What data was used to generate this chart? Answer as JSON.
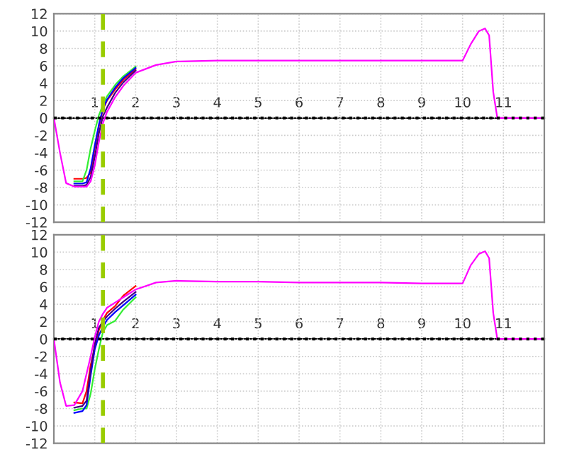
{
  "chart_data": [
    {
      "type": "line",
      "xlim": [
        0,
        12
      ],
      "ylim": [
        -12,
        12
      ],
      "xticks": [
        1,
        2,
        3,
        4,
        5,
        6,
        7,
        8,
        9,
        10,
        11
      ],
      "yticks": [
        -12,
        -10,
        -8,
        -6,
        -4,
        -2,
        0,
        2,
        4,
        6,
        8,
        10,
        12
      ],
      "grid": true,
      "line_style": "solid",
      "ref_lines": [
        {
          "axis": "y",
          "value": 0,
          "color": "#000000",
          "line_style": "dotted"
        },
        {
          "axis": "x",
          "value": 1.2,
          "color": "#99cc00",
          "line_style": "dashed"
        }
      ],
      "x": [
        0,
        0.15,
        0.3,
        0.5,
        0.7,
        0.8,
        0.9,
        1.0,
        1.1,
        1.2,
        1.3,
        1.5,
        1.7,
        2.0,
        2.5,
        3,
        4,
        5,
        6,
        7,
        8,
        9,
        10,
        10.2,
        10.4,
        10.55,
        10.65,
        10.75,
        10.85,
        11,
        11.5,
        11.9
      ],
      "series": [
        {
          "color": "#ff0000",
          "values": [
            null,
            null,
            null,
            -7.0,
            -7.0,
            -6.9,
            -6.3,
            -3.5,
            -1,
            1,
            2,
            3.3,
            4.4,
            5.6,
            null,
            null,
            null,
            null,
            null,
            null,
            null,
            null,
            null,
            null,
            null,
            null,
            null,
            null,
            null,
            null,
            null,
            null
          ]
        },
        {
          "color": "#33ee33",
          "values": [
            null,
            null,
            null,
            -7.3,
            -7.3,
            -6,
            -3.5,
            -1.5,
            0.3,
            1.5,
            2.5,
            3.8,
            4.8,
            5.9,
            null,
            null,
            null,
            null,
            null,
            null,
            null,
            null,
            null,
            null,
            null,
            null,
            null,
            null,
            null,
            null,
            null,
            null
          ]
        },
        {
          "color": "#0000ff",
          "values": [
            null,
            null,
            null,
            -7.55,
            -7.55,
            -7.4,
            -5.8,
            -3.2,
            -0.8,
            1.1,
            2.1,
            3.5,
            4.6,
            5.75,
            null,
            null,
            null,
            null,
            null,
            null,
            null,
            null,
            null,
            null,
            null,
            null,
            null,
            null,
            null,
            null,
            null,
            null
          ]
        },
        {
          "color": "#400080",
          "values": [
            null,
            null,
            null,
            -7.8,
            -7.8,
            -7.7,
            -6.8,
            -4.5,
            -1.8,
            0.2,
            1.2,
            2.9,
            4.1,
            5.45,
            null,
            null,
            null,
            null,
            null,
            null,
            null,
            null,
            null,
            null,
            null,
            null,
            null,
            null,
            null,
            null,
            null,
            null
          ]
        },
        {
          "color": "#ff00ff",
          "values": [
            0,
            -4,
            -7.5,
            -7.9,
            -7.9,
            -7.9,
            -7.3,
            -5.5,
            -2.8,
            -0.6,
            0.7,
            2.4,
            3.7,
            5.2,
            6.1,
            6.5,
            6.6,
            6.6,
            6.6,
            6.6,
            6.6,
            6.6,
            6.6,
            8.5,
            10,
            10.3,
            9.5,
            3,
            0,
            0,
            0,
            0
          ]
        }
      ]
    },
    {
      "type": "line",
      "xlim": [
        0,
        12
      ],
      "ylim": [
        -12,
        12
      ],
      "xticks": [
        1,
        2,
        3,
        4,
        5,
        6,
        7,
        8,
        9,
        10,
        11
      ],
      "yticks": [
        -12,
        -10,
        -8,
        -6,
        -4,
        -2,
        0,
        2,
        4,
        6,
        8,
        10,
        12
      ],
      "grid": true,
      "line_style": "solid",
      "ref_lines": [
        {
          "axis": "y",
          "value": 0,
          "color": "#000000",
          "line_style": "dotted"
        },
        {
          "axis": "x",
          "value": 1.2,
          "color": "#99cc00",
          "line_style": "dashed"
        }
      ],
      "x": [
        0,
        0.15,
        0.3,
        0.5,
        0.7,
        0.8,
        0.9,
        1.0,
        1.1,
        1.2,
        1.3,
        1.5,
        1.7,
        2.0,
        2.5,
        3,
        4,
        5,
        6,
        7,
        8,
        9,
        10,
        10.2,
        10.4,
        10.55,
        10.65,
        10.75,
        10.85,
        11,
        11.5,
        11.9
      ],
      "series": [
        {
          "color": "#ff0000",
          "values": [
            null,
            null,
            null,
            -7.3,
            -7.4,
            -6,
            -3,
            -1,
            1,
            2.2,
            3,
            3.8,
            5,
            6.1,
            null,
            null,
            null,
            null,
            null,
            null,
            null,
            null,
            null,
            null,
            null,
            null,
            null,
            null,
            null,
            null,
            null,
            null
          ]
        },
        {
          "color": "#33ee33",
          "values": [
            null,
            null,
            null,
            -8.2,
            -8.0,
            -8.0,
            -6.3,
            -3.5,
            -1.2,
            0.8,
            1.6,
            2.1,
            3.4,
            4.8,
            null,
            null,
            null,
            null,
            null,
            null,
            null,
            null,
            null,
            null,
            null,
            null,
            null,
            null,
            null,
            null,
            null,
            null
          ]
        },
        {
          "color": "#0000ff",
          "values": [
            null,
            null,
            null,
            -8.5,
            -8.3,
            -7.6,
            -4.2,
            -1.2,
            0.4,
            1.4,
            2.2,
            3.1,
            3.9,
            5.1,
            null,
            null,
            null,
            null,
            null,
            null,
            null,
            null,
            null,
            null,
            null,
            null,
            null,
            null,
            null,
            null,
            null,
            null
          ]
        },
        {
          "color": "#400080",
          "values": [
            null,
            null,
            null,
            -7.9,
            -7.7,
            -7.1,
            -3.6,
            -0.6,
            1.3,
            2,
            2.6,
            3.5,
            4.3,
            5.4,
            null,
            null,
            null,
            null,
            null,
            null,
            null,
            null,
            null,
            null,
            null,
            null,
            null,
            null,
            null,
            null,
            null,
            null
          ]
        },
        {
          "color": "#ff00ff",
          "values": [
            0,
            -5,
            -7.7,
            -7.6,
            -6,
            -4,
            -2,
            0.2,
            2.0,
            2.9,
            3.6,
            4.2,
            4.8,
            5.7,
            6.5,
            6.7,
            6.6,
            6.6,
            6.5,
            6.5,
            6.5,
            6.4,
            6.4,
            8.5,
            9.8,
            10.1,
            9.3,
            3,
            0,
            0,
            0,
            0
          ]
        }
      ]
    }
  ]
}
